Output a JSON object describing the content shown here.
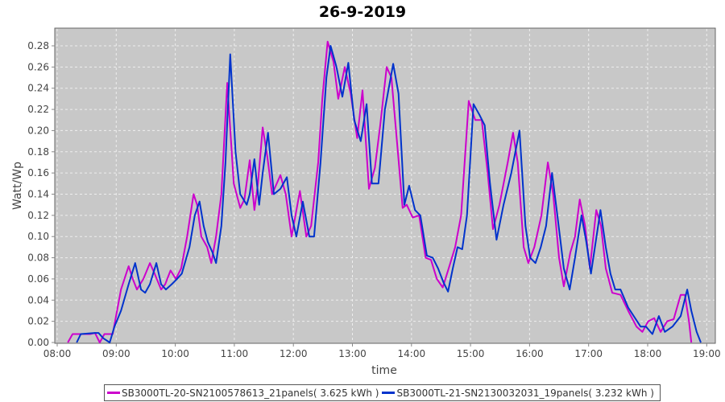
{
  "chart_data": {
    "type": "line",
    "title": "26-9-2019",
    "xlabel": "time",
    "ylabel": "Watt/Wp",
    "xlim": [
      8.0,
      19.2
    ],
    "ylim": [
      0.0,
      0.293
    ],
    "grid": true,
    "legend_position": "bottom",
    "x_ticks": [
      "08:00",
      "09:00",
      "10:00",
      "11:00",
      "12:00",
      "13:00",
      "14:00",
      "15:00",
      "16:00",
      "17:00",
      "18:00",
      "19:00"
    ],
    "y_ticks": [
      "0.00",
      "0.02",
      "0.04",
      "0.06",
      "0.08",
      "0.10",
      "0.12",
      "0.14",
      "0.16",
      "0.18",
      "0.20",
      "0.22",
      "0.24",
      "0.26",
      "0.28"
    ],
    "series": [
      {
        "name": "SB3000TL-20-SN2100578613_21panels( 3.625 kWh )",
        "color": "#cc00cc",
        "x": [
          8.18,
          8.26,
          8.56,
          8.64,
          8.72,
          8.8,
          8.94,
          9.08,
          9.21,
          9.28,
          9.35,
          9.46,
          9.57,
          9.65,
          9.76,
          9.83,
          9.92,
          10.01,
          10.1,
          10.2,
          10.31,
          10.37,
          10.44,
          10.54,
          10.61,
          10.69,
          10.78,
          10.88,
          10.99,
          11.1,
          11.17,
          11.26,
          11.34,
          11.4,
          11.48,
          11.56,
          11.64,
          11.78,
          11.87,
          11.97,
          12.11,
          12.22,
          12.3,
          12.42,
          12.49,
          12.58,
          12.68,
          12.76,
          12.87,
          12.97,
          13.08,
          13.17,
          13.28,
          13.38,
          13.47,
          13.58,
          13.66,
          13.77,
          13.85,
          13.92,
          14.02,
          14.13,
          14.24,
          14.33,
          14.43,
          14.53,
          14.63,
          14.74,
          14.84,
          14.97,
          15.08,
          15.19,
          15.29,
          15.38,
          15.49,
          15.63,
          15.72,
          15.8,
          15.9,
          15.98,
          16.08,
          16.2,
          16.31,
          16.4,
          16.5,
          16.58,
          16.69,
          16.77,
          16.85,
          16.94,
          17.02,
          17.13,
          17.21,
          17.29,
          17.4,
          17.54,
          17.67,
          17.81,
          17.91,
          18.01,
          18.11,
          18.22,
          18.33,
          18.44,
          18.56,
          18.63,
          18.7,
          18.74
        ],
        "y": [
          0,
          0.008,
          0.008,
          0.009,
          0,
          0.008,
          0.008,
          0.05,
          0.072,
          0.06,
          0.05,
          0.06,
          0.075,
          0.065,
          0.05,
          0.055,
          0.068,
          0.06,
          0.07,
          0.1,
          0.14,
          0.13,
          0.1,
          0.09,
          0.075,
          0.1,
          0.14,
          0.245,
          0.15,
          0.127,
          0.135,
          0.172,
          0.125,
          0.15,
          0.203,
          0.175,
          0.14,
          0.158,
          0.14,
          0.1,
          0.143,
          0.1,
          0.11,
          0.17,
          0.23,
          0.284,
          0.265,
          0.23,
          0.26,
          0.235,
          0.193,
          0.238,
          0.145,
          0.165,
          0.205,
          0.26,
          0.25,
          0.18,
          0.127,
          0.13,
          0.118,
          0.12,
          0.08,
          0.078,
          0.06,
          0.052,
          0.07,
          0.09,
          0.12,
          0.228,
          0.21,
          0.21,
          0.16,
          0.107,
          0.13,
          0.17,
          0.198,
          0.17,
          0.09,
          0.075,
          0.09,
          0.12,
          0.17,
          0.14,
          0.08,
          0.053,
          0.085,
          0.1,
          0.135,
          0.11,
          0.07,
          0.125,
          0.11,
          0.07,
          0.047,
          0.045,
          0.03,
          0.015,
          0.01,
          0.02,
          0.023,
          0.01,
          0.02,
          0.022,
          0.045,
          0.045,
          0.02,
          0
        ]
      },
      {
        "name": "SB3000TL-21-SN2130032031_19panels( 3.232 kWh )",
        "color": "#0033cc",
        "x": [
          8.33,
          8.4,
          8.64,
          8.7,
          8.78,
          8.89,
          8.97,
          9.08,
          9.21,
          9.32,
          9.42,
          9.49,
          9.57,
          9.68,
          9.76,
          9.84,
          9.94,
          10.03,
          10.11,
          10.24,
          10.33,
          10.41,
          10.48,
          10.55,
          10.63,
          10.69,
          10.78,
          10.85,
          10.93,
          11.02,
          11.1,
          11.21,
          11.26,
          11.34,
          11.42,
          11.48,
          11.57,
          11.67,
          11.78,
          11.89,
          11.97,
          12.05,
          12.16,
          12.27,
          12.35,
          12.46,
          12.56,
          12.63,
          12.73,
          12.83,
          12.93,
          13.03,
          13.14,
          13.24,
          13.33,
          13.44,
          13.55,
          13.69,
          13.78,
          13.88,
          13.96,
          14.06,
          14.15,
          14.26,
          14.36,
          14.45,
          14.54,
          14.62,
          14.7,
          14.78,
          14.86,
          14.94,
          15.05,
          15.15,
          15.24,
          15.33,
          15.44,
          15.56,
          15.69,
          15.83,
          15.93,
          16.01,
          16.1,
          16.19,
          16.28,
          16.38,
          16.47,
          16.58,
          16.68,
          16.77,
          16.88,
          16.96,
          17.04,
          17.2,
          17.29,
          17.37,
          17.45,
          17.54,
          17.67,
          17.88,
          17.97,
          18.08,
          18.19,
          18.29,
          18.42,
          18.56,
          18.67,
          18.74,
          18.83,
          18.9
        ],
        "y": [
          0,
          0.008,
          0.009,
          0.009,
          0.004,
          0,
          0.015,
          0.03,
          0.055,
          0.075,
          0.05,
          0.047,
          0.055,
          0.075,
          0.055,
          0.05,
          0.055,
          0.06,
          0.065,
          0.09,
          0.12,
          0.133,
          0.11,
          0.095,
          0.085,
          0.075,
          0.11,
          0.17,
          0.272,
          0.18,
          0.14,
          0.13,
          0.14,
          0.173,
          0.13,
          0.16,
          0.198,
          0.14,
          0.145,
          0.156,
          0.12,
          0.1,
          0.133,
          0.1,
          0.1,
          0.17,
          0.25,
          0.28,
          0.26,
          0.232,
          0.264,
          0.21,
          0.19,
          0.225,
          0.15,
          0.15,
          0.22,
          0.263,
          0.235,
          0.13,
          0.148,
          0.125,
          0.12,
          0.082,
          0.08,
          0.07,
          0.057,
          0.048,
          0.07,
          0.09,
          0.088,
          0.12,
          0.225,
          0.215,
          0.205,
          0.15,
          0.097,
          0.13,
          0.16,
          0.2,
          0.11,
          0.08,
          0.075,
          0.09,
          0.11,
          0.16,
          0.12,
          0.07,
          0.05,
          0.08,
          0.12,
          0.095,
          0.065,
          0.125,
          0.09,
          0.065,
          0.05,
          0.05,
          0.033,
          0.015,
          0.015,
          0.008,
          0.025,
          0.01,
          0.015,
          0.025,
          0.05,
          0.03,
          0.01,
          0
        ]
      }
    ]
  }
}
